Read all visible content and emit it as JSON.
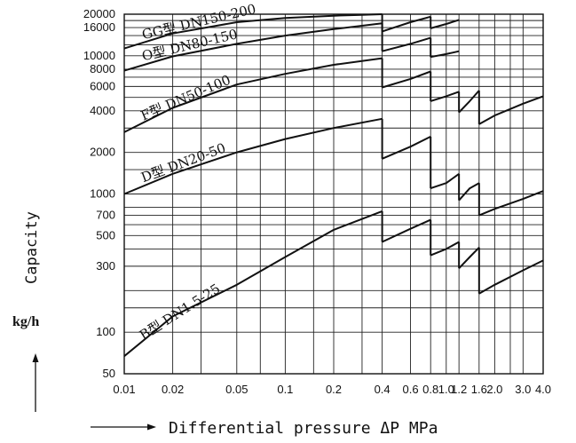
{
  "chart_data": {
    "type": "line",
    "ylabel": "Capacity",
    "yunit": "kg/h",
    "xlabel": "Differential pressure ΔP MPa",
    "xscale": "log",
    "yscale": "log",
    "xlim": [
      0.01,
      4.0
    ],
    "ylim": [
      50,
      20000
    ],
    "grid": true,
    "x_ticks": [
      {
        "v": 0.01,
        "label": "0.01"
      },
      {
        "v": 0.02,
        "label": "0.02"
      },
      {
        "v": 0.05,
        "label": "0.05"
      },
      {
        "v": 0.1,
        "label": "0.1"
      },
      {
        "v": 0.2,
        "label": "0.2"
      },
      {
        "v": 0.4,
        "label": "0.4"
      },
      {
        "v": 0.6,
        "label": "0.6"
      },
      {
        "v": 0.8,
        "label": "0.8"
      },
      {
        "v": 1.0,
        "label": "1.0"
      },
      {
        "v": 1.2,
        "label": "1.2"
      },
      {
        "v": 1.6,
        "label": "1.6"
      },
      {
        "v": 2.0,
        "label": "2.0"
      },
      {
        "v": 3.0,
        "label": "3.0"
      },
      {
        "v": 4.0,
        "label": "4.0"
      }
    ],
    "x_gridlines": [
      0.01,
      0.02,
      0.03,
      0.05,
      0.07,
      0.1,
      0.15,
      0.2,
      0.3,
      0.4,
      0.6,
      0.8,
      1.0,
      1.2,
      1.6,
      2.0,
      2.5,
      3.0,
      4.0
    ],
    "y_ticks": [
      {
        "v": 50,
        "label": "50"
      },
      {
        "v": 100,
        "label": "100"
      },
      {
        "v": 300,
        "label": "300"
      },
      {
        "v": 500,
        "label": "500"
      },
      {
        "v": 700,
        "label": "700"
      },
      {
        "v": 1000,
        "label": "1000"
      },
      {
        "v": 2000,
        "label": "2000"
      },
      {
        "v": 4000,
        "label": "4000"
      },
      {
        "v": 6000,
        "label": "6000"
      },
      {
        "v": 8000,
        "label": "8000"
      },
      {
        "v": 10000,
        "label": "10000"
      },
      {
        "v": 16000,
        "label": "16000"
      },
      {
        "v": 20000,
        "label": "20000"
      }
    ],
    "y_gridlines": [
      100,
      150,
      200,
      300,
      400,
      500,
      600,
      700,
      800,
      1000,
      1500,
      2000,
      3000,
      4000,
      5000,
      6000,
      7000,
      8000,
      10000,
      12000,
      14000,
      16000,
      18000,
      20000
    ],
    "series": [
      {
        "name": "GG型 DN150-200",
        "segments": [
          [
            [
              0.01,
              11300
            ],
            [
              0.02,
              14500
            ],
            [
              0.05,
              17500
            ],
            [
              0.1,
              18800
            ],
            [
              0.2,
              19500
            ],
            [
              0.3,
              19800
            ],
            [
              0.4,
              20000
            ]
          ],
          [
            [
              0.4,
              15000
            ],
            [
              0.6,
              17500
            ],
            [
              0.8,
              19200
            ]
          ],
          [
            [
              0.8,
              15800
            ],
            [
              1.0,
              17000
            ],
            [
              1.2,
              18200
            ]
          ]
        ]
      },
      {
        "name": "O型 DN80-150",
        "segments": [
          [
            [
              0.01,
              7800
            ],
            [
              0.02,
              9900
            ],
            [
              0.05,
              12200
            ],
            [
              0.1,
              14000
            ],
            [
              0.2,
              15600
            ],
            [
              0.4,
              17200
            ]
          ],
          [
            [
              0.4,
              10800
            ],
            [
              0.6,
              12200
            ],
            [
              0.8,
              13500
            ]
          ],
          [
            [
              0.8,
              9800
            ],
            [
              1.0,
              10300
            ],
            [
              1.2,
              10800
            ]
          ]
        ]
      },
      {
        "name": "F型 DN50-100",
        "segments": [
          [
            [
              0.01,
              2800
            ],
            [
              0.02,
              4200
            ],
            [
              0.05,
              6200
            ],
            [
              0.1,
              7400
            ],
            [
              0.2,
              8600
            ],
            [
              0.4,
              9600
            ]
          ],
          [
            [
              0.4,
              5900
            ],
            [
              0.6,
              6800
            ],
            [
              0.8,
              7700
            ]
          ],
          [
            [
              0.8,
              4700
            ],
            [
              1.0,
              5100
            ],
            [
              1.2,
              5500
            ]
          ],
          [
            [
              1.2,
              3900
            ],
            [
              1.4,
              4700
            ],
            [
              1.6,
              5600
            ]
          ],
          [
            [
              1.6,
              3200
            ],
            [
              2.0,
              3700
            ],
            [
              3.0,
              4500
            ],
            [
              4.0,
              5100
            ]
          ]
        ]
      },
      {
        "name": "D型 DN20-50",
        "segments": [
          [
            [
              0.01,
              1000
            ],
            [
              0.02,
              1400
            ],
            [
              0.05,
              2000
            ],
            [
              0.1,
              2500
            ],
            [
              0.2,
              3000
            ],
            [
              0.4,
              3500
            ]
          ],
          [
            [
              0.4,
              1800
            ],
            [
              0.6,
              2200
            ],
            [
              0.8,
              2600
            ]
          ],
          [
            [
              0.8,
              1100
            ],
            [
              1.0,
              1200
            ],
            [
              1.2,
              1400
            ]
          ],
          [
            [
              1.2,
              900
            ],
            [
              1.4,
              1100
            ],
            [
              1.6,
              1200
            ]
          ],
          [
            [
              1.6,
              700
            ],
            [
              2.0,
              780
            ],
            [
              3.0,
              920
            ],
            [
              4.0,
              1050
            ]
          ]
        ]
      },
      {
        "name": "B型 DN1.5-25",
        "segments": [
          [
            [
              0.01,
              67
            ],
            [
              0.02,
              130
            ],
            [
              0.05,
              220
            ],
            [
              0.1,
              350
            ],
            [
              0.2,
              550
            ],
            [
              0.4,
              750
            ]
          ],
          [
            [
              0.4,
              450
            ],
            [
              0.6,
              560
            ],
            [
              0.8,
              650
            ]
          ],
          [
            [
              0.8,
              360
            ],
            [
              1.0,
              400
            ],
            [
              1.2,
              450
            ]
          ],
          [
            [
              1.2,
              290
            ],
            [
              1.4,
              350
            ],
            [
              1.6,
              410
            ]
          ],
          [
            [
              1.6,
              190
            ],
            [
              2.0,
              220
            ],
            [
              3.0,
              280
            ],
            [
              4.0,
              330
            ]
          ]
        ]
      }
    ]
  }
}
